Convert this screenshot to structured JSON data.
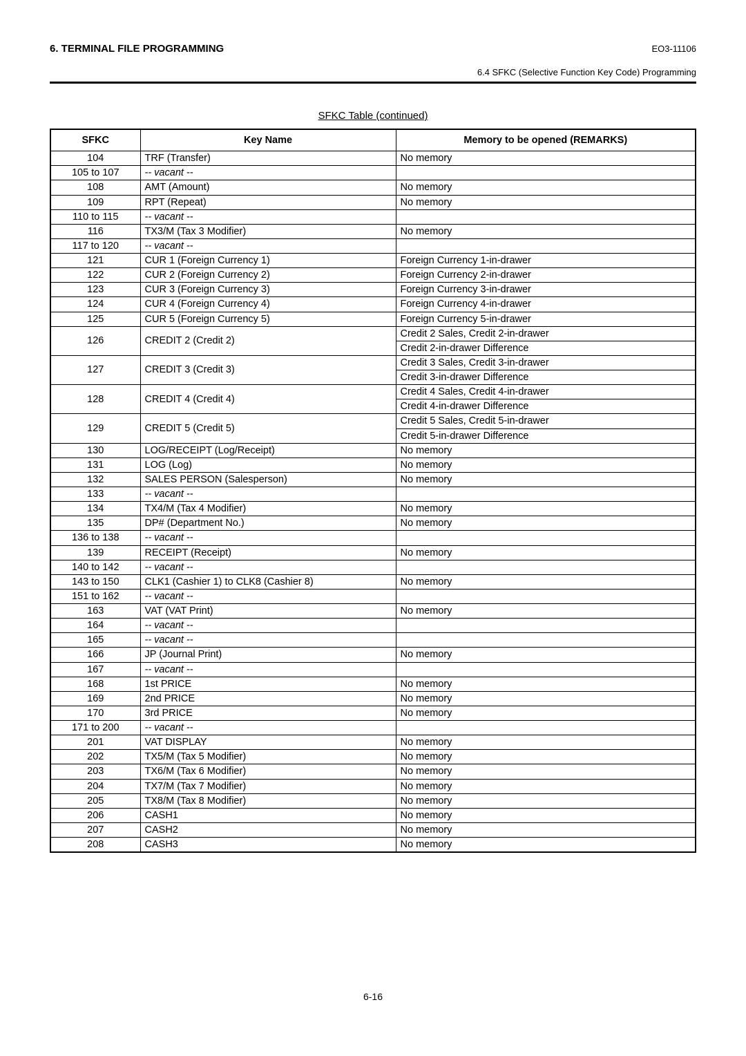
{
  "header": {
    "section_title": "6. TERMINAL FILE PROGRAMMING",
    "doc_code": "EO3-11106",
    "subsection": "6.4 SFKC (Selective Function Key Code) Programming"
  },
  "table": {
    "title": "SFKC Table (continued)",
    "columns": {
      "sfkc": "SFKC",
      "key_name": "Key Name",
      "remarks": "Memory to be opened (REMARKS)"
    },
    "rows": [
      {
        "sfkc": "104",
        "key": "TRF (Transfer)",
        "mem": "No memory"
      },
      {
        "sfkc": "105 to 107",
        "key": "-- vacant --",
        "mem": "",
        "vacant": true
      },
      {
        "sfkc": "108",
        "key": "AMT (Amount)",
        "mem": "No memory"
      },
      {
        "sfkc": "109",
        "key": "RPT (Repeat)",
        "mem": "No memory"
      },
      {
        "sfkc": "110 to 115",
        "key": "-- vacant --",
        "mem": "",
        "vacant": true
      },
      {
        "sfkc": "116",
        "key": "TX3/M (Tax 3 Modifier)",
        "mem": "No memory"
      },
      {
        "sfkc": "117 to 120",
        "key": "-- vacant --",
        "mem": "",
        "vacant": true
      },
      {
        "sfkc": "121",
        "key": "CUR 1 (Foreign Currency 1)",
        "mem": "Foreign Currency 1-in-drawer"
      },
      {
        "sfkc": "122",
        "key": "CUR 2 (Foreign Currency 2)",
        "mem": "Foreign Currency 2-in-drawer"
      },
      {
        "sfkc": "123",
        "key": "CUR 3 (Foreign Currency 3)",
        "mem": "Foreign Currency 3-in-drawer"
      },
      {
        "sfkc": "124",
        "key": "CUR 4 (Foreign Currency 4)",
        "mem": "Foreign Currency 4-in-drawer"
      },
      {
        "sfkc": "125",
        "key": "CUR 5 (Foreign Currency 5)",
        "mem": "Foreign Currency 5-in-drawer"
      },
      {
        "sfkc": "126",
        "key": "CREDIT 2 (Credit 2)",
        "mem": "Credit 2 Sales, Credit 2-in-drawer",
        "mem2": "Credit 2-in-drawer Difference",
        "two": true
      },
      {
        "sfkc": "127",
        "key": "CREDIT 3 (Credit 3)",
        "mem": "Credit 3 Sales, Credit 3-in-drawer",
        "mem2": "Credit 3-in-drawer Difference",
        "two": true
      },
      {
        "sfkc": "128",
        "key": "CREDIT 4 (Credit 4)",
        "mem": "Credit 4 Sales, Credit 4-in-drawer",
        "mem2": "Credit 4-in-drawer Difference",
        "two": true
      },
      {
        "sfkc": "129",
        "key": "CREDIT 5 (Credit 5)",
        "mem": "Credit 5 Sales, Credit 5-in-drawer",
        "mem2": "Credit 5-in-drawer Difference",
        "two": true
      },
      {
        "sfkc": "130",
        "key": "LOG/RECEIPT (Log/Receipt)",
        "mem": "No memory"
      },
      {
        "sfkc": "131",
        "key": "LOG (Log)",
        "mem": "No memory"
      },
      {
        "sfkc": "132",
        "key": "SALES PERSON (Salesperson)",
        "mem": "No memory"
      },
      {
        "sfkc": "133",
        "key": "-- vacant --",
        "mem": "",
        "vacant": true
      },
      {
        "sfkc": "134",
        "key": "TX4/M (Tax 4 Modifier)",
        "mem": "No memory"
      },
      {
        "sfkc": "135",
        "key": "DP# (Department No.)",
        "mem": "No memory"
      },
      {
        "sfkc": "136 to 138",
        "key": "-- vacant --",
        "mem": "",
        "vacant": true
      },
      {
        "sfkc": "139",
        "key": "RECEIPT (Receipt)",
        "mem": "No memory"
      },
      {
        "sfkc": "140 to 142",
        "key": "-- vacant --",
        "mem": "",
        "vacant": true
      },
      {
        "sfkc": "143 to 150",
        "key": "CLK1 (Cashier 1) to CLK8 (Cashier 8)",
        "mem": "No memory"
      },
      {
        "sfkc": "151 to 162",
        "key": "-- vacant --",
        "mem": "",
        "vacant": true
      },
      {
        "sfkc": "163",
        "key": "VAT (VAT Print)",
        "mem": "No memory"
      },
      {
        "sfkc": "164",
        "key": "-- vacant --",
        "mem": "",
        "vacant": true
      },
      {
        "sfkc": "165",
        "key": "-- vacant --",
        "mem": "",
        "vacant": true
      },
      {
        "sfkc": "166",
        "key": "JP (Journal Print)",
        "mem": "No memory"
      },
      {
        "sfkc": "167",
        "key": "-- vacant --",
        "mem": "",
        "vacant": true
      },
      {
        "sfkc": "168",
        "key": "1st PRICE",
        "mem": "No memory"
      },
      {
        "sfkc": "169",
        "key": "2nd PRICE",
        "mem": "No memory"
      },
      {
        "sfkc": "170",
        "key": "3rd PRICE",
        "mem": "No memory"
      },
      {
        "sfkc": "171 to 200",
        "key": "-- vacant --",
        "mem": "",
        "vacant": true
      },
      {
        "sfkc": "201",
        "key": "VAT DISPLAY",
        "mem": "No memory"
      },
      {
        "sfkc": "202",
        "key": "TX5/M (Tax 5 Modifier)",
        "mem": "No memory"
      },
      {
        "sfkc": "203",
        "key": "TX6/M (Tax 6 Modifier)",
        "mem": "No memory"
      },
      {
        "sfkc": "204",
        "key": "TX7/M (Tax 7 Modifier)",
        "mem": "No memory"
      },
      {
        "sfkc": "205",
        "key": "TX8/M (Tax 8 Modifier)",
        "mem": "No memory"
      },
      {
        "sfkc": "206",
        "key": "CASH1",
        "mem": "No memory"
      },
      {
        "sfkc": "207",
        "key": "CASH2",
        "mem": "No memory"
      },
      {
        "sfkc": "208",
        "key": "CASH3",
        "mem": "No memory"
      }
    ]
  },
  "footer": {
    "page_number": "6-16"
  }
}
